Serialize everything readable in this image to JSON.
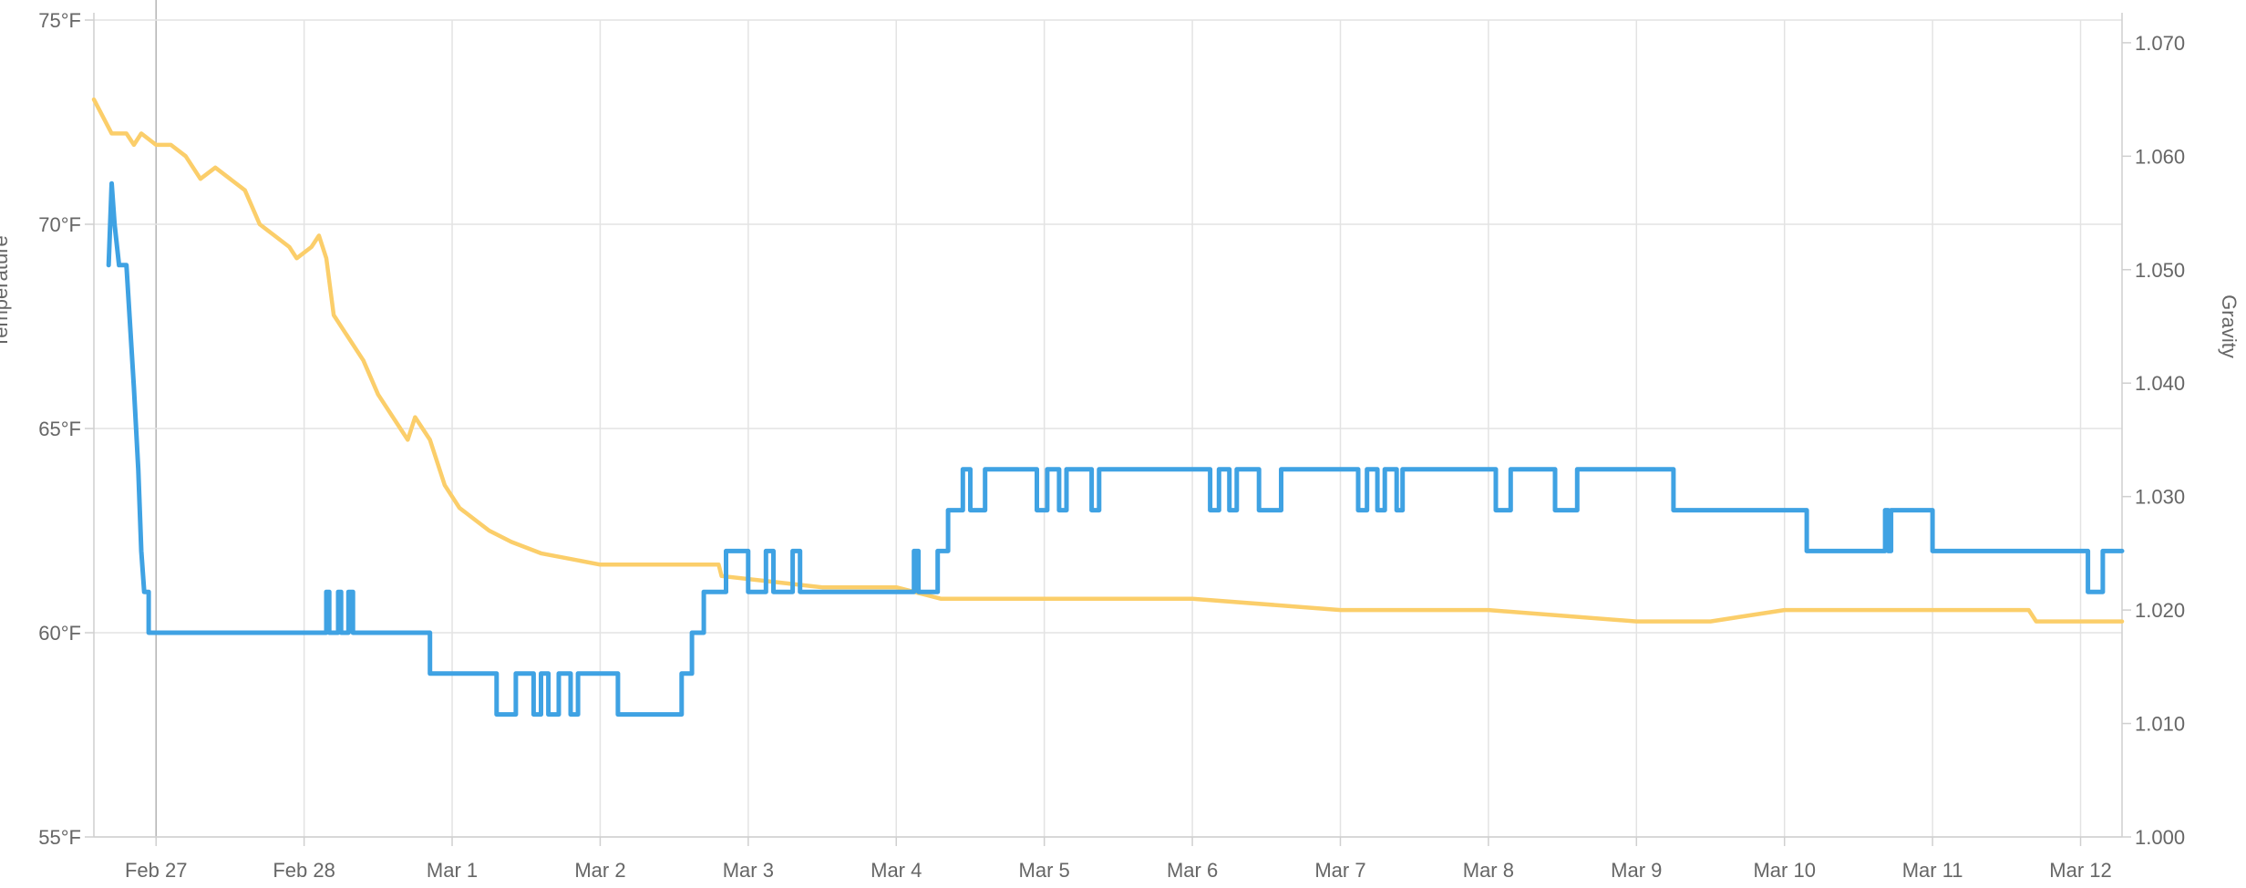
{
  "chart_data": {
    "type": "line",
    "ylabel": "Temperature",
    "y2label": "Gravity",
    "x_tick_labels": [
      "Feb 27",
      "Feb 28",
      "Mar 1",
      "Mar 2",
      "Mar 3",
      "Mar 4",
      "Mar 5",
      "Mar 6",
      "Mar 7",
      "Mar 8",
      "Mar 9",
      "Mar 10",
      "Mar 11",
      "Mar 12"
    ],
    "y_tick_labels": [
      "75°F",
      "70°F",
      "65°F",
      "60°F",
      "55°F"
    ],
    "y2_tick_labels": [
      "1.070",
      "1.060",
      "1.050",
      "1.040",
      "1.030",
      "1.020",
      "1.010",
      "1.000"
    ],
    "xlim": [
      -0.42,
      13.28
    ],
    "ylim": [
      55,
      75
    ],
    "y2lim": [
      1.0,
      1.072
    ],
    "grid": true,
    "colors": {
      "temperature": "#3fa2e3",
      "gravity": "#fbce6a"
    },
    "series": [
      {
        "key": "temperature",
        "axis": "left",
        "points": [
          [
            -0.32,
            69
          ],
          [
            -0.3,
            71
          ],
          [
            -0.28,
            70
          ],
          [
            -0.25,
            69
          ],
          [
            -0.2,
            69
          ],
          [
            -0.15,
            66
          ],
          [
            -0.12,
            64
          ],
          [
            -0.1,
            62
          ],
          [
            -0.08,
            61
          ],
          [
            -0.05,
            61
          ],
          [
            -0.05,
            60
          ],
          [
            1.15,
            60
          ],
          [
            1.15,
            61
          ],
          [
            1.17,
            61
          ],
          [
            1.17,
            60
          ],
          [
            1.23,
            60
          ],
          [
            1.23,
            61
          ],
          [
            1.25,
            61
          ],
          [
            1.25,
            60
          ],
          [
            1.3,
            60
          ],
          [
            1.3,
            61
          ],
          [
            1.33,
            61
          ],
          [
            1.33,
            60
          ],
          [
            1.85,
            60
          ],
          [
            1.85,
            59
          ],
          [
            2.3,
            59
          ],
          [
            2.3,
            58
          ],
          [
            2.43,
            58
          ],
          [
            2.43,
            59
          ],
          [
            2.55,
            59
          ],
          [
            2.55,
            58
          ],
          [
            2.6,
            58
          ],
          [
            2.6,
            59
          ],
          [
            2.65,
            59
          ],
          [
            2.65,
            58
          ],
          [
            2.72,
            58
          ],
          [
            2.72,
            59
          ],
          [
            2.8,
            59
          ],
          [
            2.8,
            58
          ],
          [
            2.85,
            58
          ],
          [
            2.85,
            59
          ],
          [
            3.12,
            59
          ],
          [
            3.12,
            58
          ],
          [
            3.55,
            58
          ],
          [
            3.55,
            59
          ],
          [
            3.62,
            59
          ],
          [
            3.62,
            60
          ],
          [
            3.7,
            60
          ],
          [
            3.7,
            61
          ],
          [
            3.85,
            61
          ],
          [
            3.85,
            62
          ],
          [
            4.0,
            62
          ],
          [
            4.0,
            61
          ],
          [
            4.12,
            61
          ],
          [
            4.12,
            62
          ],
          [
            4.17,
            62
          ],
          [
            4.17,
            61
          ],
          [
            4.3,
            61
          ],
          [
            4.3,
            62
          ],
          [
            4.35,
            62
          ],
          [
            4.35,
            61
          ],
          [
            5.12,
            61
          ],
          [
            5.12,
            62
          ],
          [
            5.15,
            62
          ],
          [
            5.15,
            61
          ],
          [
            5.28,
            61
          ],
          [
            5.28,
            62
          ],
          [
            5.35,
            62
          ],
          [
            5.35,
            63
          ],
          [
            5.45,
            63
          ],
          [
            5.45,
            64
          ],
          [
            5.5,
            64
          ],
          [
            5.5,
            63
          ],
          [
            5.6,
            63
          ],
          [
            5.6,
            64
          ],
          [
            5.95,
            64
          ],
          [
            5.95,
            63
          ],
          [
            6.02,
            63
          ],
          [
            6.02,
            64
          ],
          [
            6.1,
            64
          ],
          [
            6.1,
            63
          ],
          [
            6.15,
            63
          ],
          [
            6.15,
            64
          ],
          [
            6.32,
            64
          ],
          [
            6.32,
            63
          ],
          [
            6.37,
            63
          ],
          [
            6.37,
            64
          ],
          [
            7.12,
            64
          ],
          [
            7.12,
            63
          ],
          [
            7.18,
            63
          ],
          [
            7.18,
            64
          ],
          [
            7.25,
            64
          ],
          [
            7.25,
            63
          ],
          [
            7.3,
            63
          ],
          [
            7.3,
            64
          ],
          [
            7.45,
            64
          ],
          [
            7.45,
            63
          ],
          [
            7.6,
            63
          ],
          [
            7.6,
            64
          ],
          [
            8.12,
            64
          ],
          [
            8.12,
            63
          ],
          [
            8.18,
            63
          ],
          [
            8.18,
            64
          ],
          [
            8.25,
            64
          ],
          [
            8.25,
            63
          ],
          [
            8.3,
            63
          ],
          [
            8.3,
            64
          ],
          [
            8.38,
            64
          ],
          [
            8.38,
            63
          ],
          [
            8.42,
            63
          ],
          [
            8.42,
            64
          ],
          [
            9.05,
            64
          ],
          [
            9.05,
            63
          ],
          [
            9.15,
            63
          ],
          [
            9.15,
            64
          ],
          [
            9.45,
            64
          ],
          [
            9.45,
            63
          ],
          [
            9.6,
            63
          ],
          [
            9.6,
            64
          ],
          [
            10.25,
            64
          ],
          [
            10.25,
            63
          ],
          [
            11.15,
            63
          ],
          [
            11.15,
            62
          ],
          [
            11.68,
            62
          ],
          [
            11.68,
            63
          ],
          [
            11.7,
            63
          ],
          [
            11.7,
            62
          ],
          [
            11.72,
            62
          ],
          [
            11.72,
            63
          ],
          [
            12.0,
            63
          ],
          [
            12.0,
            62
          ],
          [
            13.05,
            62
          ],
          [
            13.05,
            61
          ],
          [
            13.15,
            61
          ],
          [
            13.15,
            62
          ],
          [
            13.28,
            62
          ]
        ]
      },
      {
        "key": "gravity",
        "axis": "right",
        "points": [
          [
            -0.42,
            1.065
          ],
          [
            -0.3,
            1.062
          ],
          [
            -0.2,
            1.062
          ],
          [
            -0.15,
            1.061
          ],
          [
            -0.1,
            1.062
          ],
          [
            0.0,
            1.061
          ],
          [
            0.1,
            1.061
          ],
          [
            0.2,
            1.06
          ],
          [
            0.3,
            1.058
          ],
          [
            0.4,
            1.059
          ],
          [
            0.5,
            1.058
          ],
          [
            0.6,
            1.057
          ],
          [
            0.7,
            1.054
          ],
          [
            0.8,
            1.053
          ],
          [
            0.9,
            1.052
          ],
          [
            0.95,
            1.051
          ],
          [
            1.05,
            1.052
          ],
          [
            1.1,
            1.053
          ],
          [
            1.15,
            1.051
          ],
          [
            1.2,
            1.046
          ],
          [
            1.3,
            1.044
          ],
          [
            1.4,
            1.042
          ],
          [
            1.5,
            1.039
          ],
          [
            1.6,
            1.037
          ],
          [
            1.7,
            1.035
          ],
          [
            1.75,
            1.037
          ],
          [
            1.85,
            1.035
          ],
          [
            1.95,
            1.031
          ],
          [
            2.05,
            1.029
          ],
          [
            2.15,
            1.028
          ],
          [
            2.25,
            1.027
          ],
          [
            2.4,
            1.026
          ],
          [
            2.6,
            1.025
          ],
          [
            3.0,
            1.024
          ],
          [
            3.3,
            1.024
          ],
          [
            3.8,
            1.024
          ],
          [
            3.82,
            1.023
          ],
          [
            4.5,
            1.022
          ],
          [
            5.0,
            1.022
          ],
          [
            5.3,
            1.021
          ],
          [
            6.0,
            1.021
          ],
          [
            7.0,
            1.021
          ],
          [
            8.0,
            1.02
          ],
          [
            9.0,
            1.02
          ],
          [
            10.0,
            1.019
          ],
          [
            10.5,
            1.019
          ],
          [
            11.0,
            1.02
          ],
          [
            12.0,
            1.02
          ],
          [
            12.65,
            1.02
          ],
          [
            12.7,
            1.019
          ],
          [
            13.28,
            1.019
          ]
        ]
      }
    ]
  }
}
